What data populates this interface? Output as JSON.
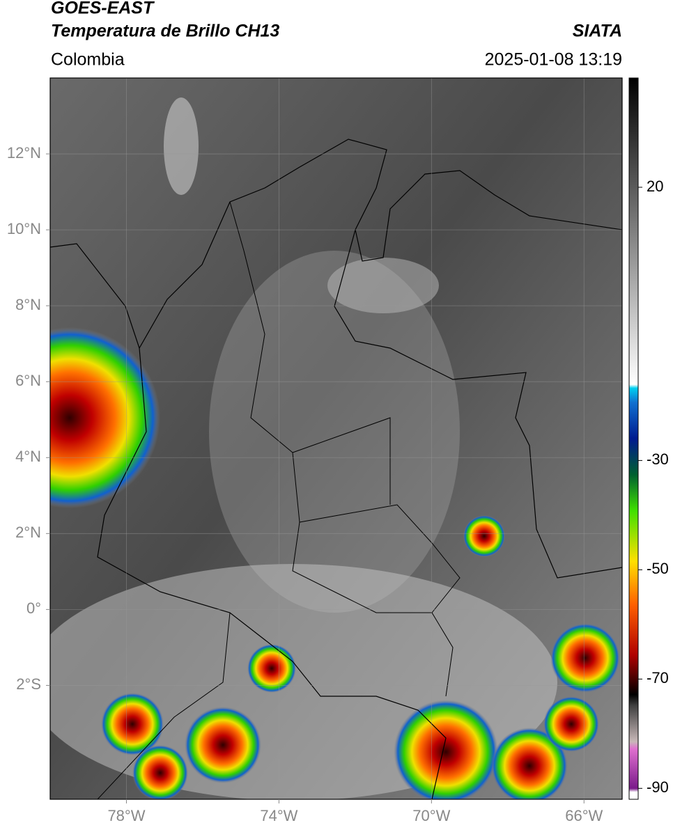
{
  "header": {
    "satellite": "GOES-EAST",
    "product": "Temperatura de Brillo CH13",
    "source": "SIATA",
    "region": "Colombia",
    "datetime": "2025-01-08 13:19"
  },
  "map": {
    "lonlim": [
      -80,
      -65
    ],
    "latlim": [
      -5,
      14
    ],
    "lonticks": [
      {
        "value": -78,
        "label": "78°W"
      },
      {
        "value": -74,
        "label": "74°W"
      },
      {
        "value": -70,
        "label": "70°W"
      },
      {
        "value": -66,
        "label": "66°W"
      }
    ],
    "latticks": [
      {
        "value": 12,
        "label": "12°N"
      },
      {
        "value": 10,
        "label": "10°N"
      },
      {
        "value": 8,
        "label": "8°N"
      },
      {
        "value": 6,
        "label": "6°N"
      },
      {
        "value": 4,
        "label": "4°N"
      },
      {
        "value": 2,
        "label": "2°N"
      },
      {
        "value": 0,
        "label": "0°"
      },
      {
        "value": -2,
        "label": "2°S"
      }
    ]
  },
  "colorbar": {
    "lim": [
      -92,
      40
    ],
    "ticks": [
      20,
      -30,
      -50,
      -70,
      -90
    ]
  }
}
